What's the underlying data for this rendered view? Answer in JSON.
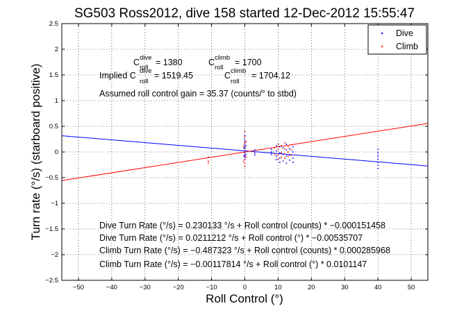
{
  "chart_data": {
    "type": "scatter",
    "title": "SG503 Ross2012, dive 158 started 12-Dec-2012 15:55:47",
    "xlabel": "Roll Control (°)",
    "ylabel": "Turn rate (°/s) (starboard positive)",
    "xlim": [
      -55,
      55
    ],
    "ylim": [
      -2.5,
      2.5
    ],
    "x_ticks": [
      "−50",
      "−40",
      "−30",
      "−20",
      "−10",
      "0",
      "10",
      "20",
      "30",
      "40",
      "50"
    ],
    "x_tick_values": [
      -50,
      -40,
      -30,
      -20,
      -10,
      0,
      10,
      20,
      30,
      40,
      50
    ],
    "y_ticks": [
      "−2.5",
      "−2",
      "−1.5",
      "−1",
      "−0.5",
      "0",
      "0.5",
      "1",
      "1.5",
      "2",
      "2.5"
    ],
    "y_tick_values": [
      -2.5,
      -2,
      -1.5,
      -1,
      -0.5,
      0,
      0.5,
      1,
      1.5,
      2,
      2.5
    ],
    "grid": true,
    "legend_position": "top-right",
    "series": [
      {
        "name": "Dive",
        "color": "#0000ff",
        "points": [
          [
            0,
            0.32
          ],
          [
            0,
            0.25
          ],
          [
            0,
            0.2
          ],
          [
            0,
            0.15
          ],
          [
            0,
            0.1
          ],
          [
            0,
            0.06
          ],
          [
            0,
            0.02
          ],
          [
            0,
            -0.02
          ],
          [
            0,
            -0.06
          ],
          [
            0,
            -0.1
          ],
          [
            0,
            -0.14
          ],
          [
            0.3,
            0.12
          ],
          [
            0.3,
            -0.05
          ],
          [
            -0.3,
            0.08
          ],
          [
            -0.3,
            -0.08
          ],
          [
            3,
            0.04
          ],
          [
            3,
            -0.02
          ],
          [
            3,
            -0.06
          ],
          [
            8,
            0.05
          ],
          [
            8,
            0.0
          ],
          [
            8,
            -0.05
          ],
          [
            9.5,
            0.12
          ],
          [
            9.5,
            0.02
          ],
          [
            9.5,
            -0.08
          ],
          [
            9.5,
            -0.15
          ],
          [
            10.5,
            0.1
          ],
          [
            10.5,
            -0.02
          ],
          [
            10.5,
            -0.12
          ],
          [
            10.5,
            -0.2
          ],
          [
            11.5,
            0.08
          ],
          [
            11.5,
            -0.05
          ],
          [
            11.5,
            -0.18
          ],
          [
            12.5,
            0.15
          ],
          [
            12.5,
            0.04
          ],
          [
            12.5,
            -0.08
          ],
          [
            12.5,
            -0.22
          ],
          [
            13.5,
            0.06
          ],
          [
            13.5,
            -0.06
          ],
          [
            13.5,
            -0.16
          ],
          [
            14.5,
            0.1
          ],
          [
            14.5,
            0.0
          ],
          [
            14.5,
            -0.12
          ],
          [
            14.5,
            -0.2
          ],
          [
            40,
            0.05
          ],
          [
            40,
            -0.02
          ],
          [
            40,
            -0.08
          ],
          [
            40,
            -0.14
          ],
          [
            40,
            -0.2
          ],
          [
            40,
            -0.26
          ],
          [
            40,
            -0.32
          ]
        ],
        "fit": {
          "slope": -0.00535707,
          "intercept": 0.0211212
        }
      },
      {
        "name": "Climb",
        "color": "#ff0000",
        "points": [
          [
            0,
            0.4
          ],
          [
            0,
            0.3
          ],
          [
            0,
            0.18
          ],
          [
            0,
            0.08
          ],
          [
            0,
            0.0
          ],
          [
            0,
            -0.08
          ],
          [
            0,
            -0.15
          ],
          [
            0,
            -0.22
          ],
          [
            0,
            -0.28
          ],
          [
            0.4,
            0.2
          ],
          [
            0.4,
            -0.1
          ],
          [
            -0.4,
            0.12
          ],
          [
            -0.4,
            -0.18
          ],
          [
            -11,
            -0.1
          ],
          [
            -11,
            -0.18
          ],
          [
            -11,
            -0.22
          ],
          [
            9,
            0.08
          ],
          [
            9,
            -0.05
          ],
          [
            10,
            0.15
          ],
          [
            10,
            0.05
          ],
          [
            10,
            -0.06
          ],
          [
            10,
            -0.14
          ],
          [
            11,
            0.12
          ],
          [
            11,
            -0.02
          ],
          [
            11,
            -0.1
          ],
          [
            12,
            0.18
          ],
          [
            12,
            0.06
          ],
          [
            12,
            -0.04
          ],
          [
            12,
            -0.12
          ],
          [
            13,
            0.1
          ],
          [
            13,
            0.0
          ],
          [
            13,
            -0.08
          ],
          [
            14,
            0.14
          ],
          [
            14,
            0.04
          ],
          [
            14,
            -0.06
          ]
        ],
        "fit": {
          "slope": 0.0101147,
          "intercept": -0.00117814
        }
      }
    ]
  },
  "annotations": {
    "c_dive_prefix": "C",
    "c_sup_dive": "dive",
    "c_sub_roll": "roll",
    "c_dive_value": " = 1380",
    "c_climb_prefix": "C",
    "c_sup_climb": "climb",
    "c_climb_value": " = 1700",
    "implied_prefix": "Implied C",
    "implied_dive_value": " = 1519.45",
    "implied_climb_prefix": "C",
    "implied_climb_value": " = 1704.12",
    "gain": "Assumed roll control gain = 35.37 (counts/° to stbd)",
    "eq1": "Dive Turn Rate (°/s) = 0.230133 °/s + Roll control (counts) * −0.000151458",
    "eq2": "Dive Turn Rate (°/s) = 0.0211212 °/s + Roll control (°) * −0.00535707",
    "eq3": "Climb Turn Rate (°/s) = −0.487323 °/s + Roll control (counts) * 0.000285968",
    "eq4": "Climb Turn Rate (°/s) = −0.00117814 °/s + Roll control (°) * 0.0101147"
  }
}
